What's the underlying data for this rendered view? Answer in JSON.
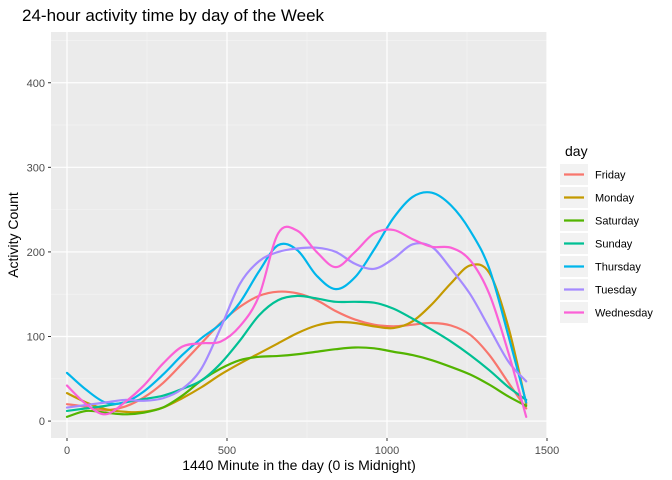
{
  "chart_data": {
    "type": "line",
    "title": "24-hour activity time by day of the Week",
    "xlabel": "1440 Minute in the day (0 is Midnight)",
    "ylabel": "Activity Count",
    "xlim": [
      -50,
      1500
    ],
    "ylim": [
      -20,
      460
    ],
    "x_ticks": [
      0,
      500,
      1000,
      1500
    ],
    "x_tick_labels": [
      "0",
      "500",
      "1000",
      "1500"
    ],
    "y_ticks": [
      0,
      100,
      200,
      300,
      400
    ],
    "y_tick_labels": [
      "0",
      "100",
      "200",
      "300",
      "400"
    ],
    "grid": true,
    "legend_title": "day",
    "legend_position": "right",
    "x": [
      0,
      60,
      120,
      180,
      240,
      300,
      360,
      420,
      480,
      540,
      600,
      660,
      720,
      780,
      840,
      900,
      960,
      1020,
      1080,
      1140,
      1200,
      1260,
      1320,
      1380,
      1435
    ],
    "series": [
      {
        "name": "Friday",
        "color": "#F8766D",
        "values": [
          20,
          17,
          13,
          17,
          28,
          45,
          68,
          92,
          116,
          135,
          148,
          153,
          151,
          143,
          130,
          120,
          114,
          112,
          114,
          116,
          113,
          102,
          78,
          45,
          15
        ]
      },
      {
        "name": "Monday",
        "color": "#C49A00",
        "values": [
          33,
          22,
          14,
          11,
          11,
          16,
          27,
          40,
          55,
          68,
          80,
          92,
          104,
          113,
          117,
          116,
          112,
          110,
          118,
          138,
          163,
          184,
          175,
          110,
          20
        ]
      },
      {
        "name": "Saturday",
        "color": "#53B400",
        "values": [
          5,
          12,
          10,
          8,
          10,
          16,
          30,
          48,
          62,
          72,
          76,
          77,
          79,
          82,
          85,
          87,
          86,
          82,
          78,
          72,
          64,
          55,
          43,
          29,
          18
        ]
      },
      {
        "name": "Sunday",
        "color": "#00C094",
        "values": [
          12,
          15,
          18,
          22,
          26,
          30,
          38,
          48,
          68,
          95,
          125,
          143,
          148,
          145,
          141,
          141,
          140,
          133,
          121,
          108,
          94,
          78,
          60,
          40,
          25
        ]
      },
      {
        "name": "Thursday",
        "color": "#00B6EB",
        "values": [
          57,
          37,
          22,
          22,
          35,
          55,
          78,
          98,
          115,
          140,
          177,
          208,
          202,
          172,
          156,
          170,
          203,
          240,
          265,
          270,
          255,
          225,
          180,
          100,
          22
        ]
      },
      {
        "name": "Tuesday",
        "color": "#A58AFF",
        "values": [
          16,
          19,
          22,
          25,
          24,
          27,
          38,
          62,
          110,
          162,
          189,
          200,
          204,
          205,
          200,
          186,
          180,
          192,
          209,
          206,
          180,
          150,
          110,
          70,
          47
        ]
      },
      {
        "name": "Wednesday",
        "color": "#FB61D7",
        "values": [
          42,
          20,
          8,
          22,
          42,
          68,
          88,
          92,
          94,
          112,
          148,
          222,
          225,
          200,
          182,
          200,
          222,
          226,
          215,
          206,
          205,
          190,
          150,
          80,
          5
        ]
      }
    ]
  }
}
